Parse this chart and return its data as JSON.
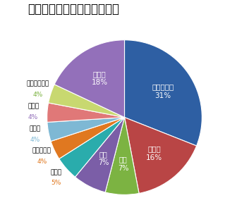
{
  "title": "不法投棄回数のキャラ別割合",
  "labels": [
    "ドラえもん",
    "のび太",
    "玉子",
    "静香",
    "のび助",
    "ジャイアン",
    "スネ夫",
    "出木杉",
    "スネ夫のママ",
    "その他"
  ],
  "values": [
    31,
    16,
    7,
    7,
    5,
    4,
    4,
    4,
    4,
    18
  ],
  "colors": [
    "#2E5FA3",
    "#B94545",
    "#7CB342",
    "#7B5EA7",
    "#2AACAC",
    "#E07820",
    "#7EB8D4",
    "#E07878",
    "#C8D870",
    "#9370BA"
  ],
  "startangle": 90,
  "title_fontsize": 12,
  "label_inside": [
    true,
    true,
    true,
    true,
    false,
    false,
    false,
    false,
    false,
    true
  ],
  "pct_colors_outside": [
    "#E07820",
    "#E07820",
    "#9370BA",
    "#7CB342",
    "#7B5EA7"
  ],
  "outside_label_color": "black"
}
